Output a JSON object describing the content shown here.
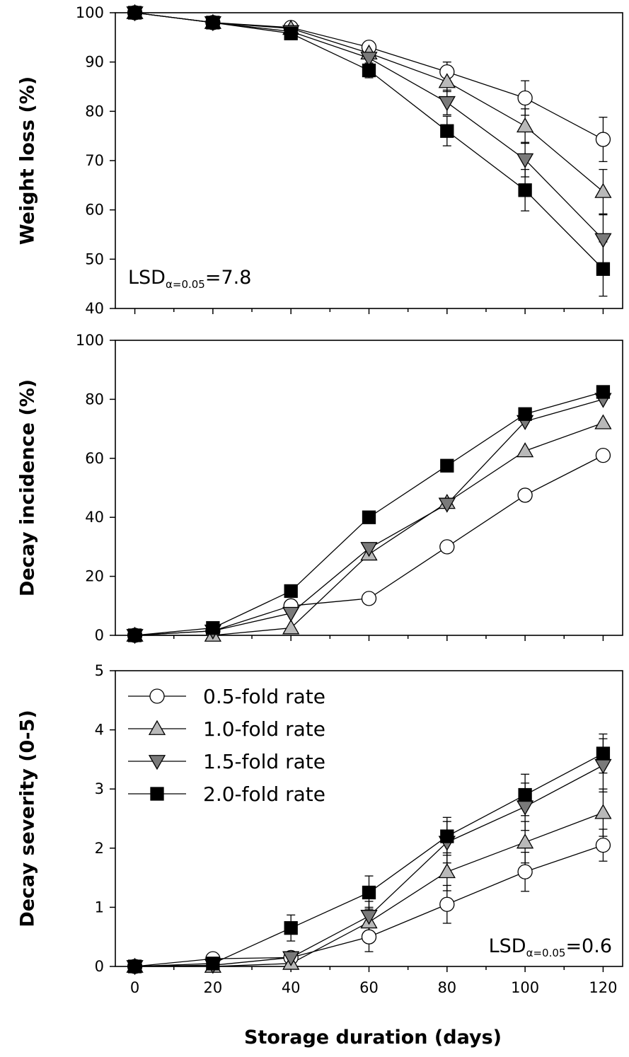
{
  "chart_data": [
    {
      "type": "line",
      "ylabel": "Weight loss (%)",
      "xlabel": "",
      "x": [
        0,
        20,
        40,
        60,
        80,
        100,
        120
      ],
      "xlim": [
        -5,
        125
      ],
      "ylim": [
        40,
        100
      ],
      "yticks": [
        40,
        50,
        60,
        70,
        80,
        90,
        100
      ],
      "annotation": {
        "main": "LSD",
        "sub": "α=0.05",
        "value": "=7.8",
        "placement": "bottom-left"
      },
      "series": [
        {
          "name": "0.5-fold rate",
          "values": [
            100,
            98,
            97,
            93,
            88,
            82.7,
            74.3
          ],
          "errors": [
            0,
            0,
            0,
            1.2,
            2,
            3.5,
            4.5
          ]
        },
        {
          "name": "1.0-fold rate",
          "values": [
            100,
            98,
            96.8,
            91.8,
            86,
            77,
            63.7
          ],
          "errors": [
            0,
            0,
            0,
            1.2,
            2,
            3.5,
            4.5
          ]
        },
        {
          "name": "1.5-fold rate",
          "values": [
            100,
            98,
            96.2,
            90.8,
            81.8,
            70.2,
            54
          ],
          "errors": [
            0,
            0,
            0,
            1.2,
            2.5,
            3.5,
            5
          ]
        },
        {
          "name": "2.0-fold rate",
          "values": [
            100,
            98,
            95.8,
            88.3,
            76,
            64,
            48
          ],
          "errors": [
            0,
            0,
            0,
            1.5,
            3,
            4.2,
            5.5
          ]
        }
      ]
    },
    {
      "type": "line",
      "ylabel": "Decay incidence (%)",
      "xlabel": "",
      "x": [
        0,
        20,
        40,
        60,
        80,
        100,
        120
      ],
      "xlim": [
        -5,
        125
      ],
      "ylim": [
        0,
        100
      ],
      "yticks": [
        0,
        20,
        40,
        60,
        80,
        100
      ],
      "series": [
        {
          "name": "0.5-fold rate",
          "values": [
            0,
            1.5,
            10,
            12.5,
            30,
            47.5,
            61
          ]
        },
        {
          "name": "1.0-fold rate",
          "values": [
            0,
            0,
            2.5,
            27.5,
            45,
            62.5,
            72
          ]
        },
        {
          "name": "1.5-fold rate",
          "values": [
            0,
            1.5,
            7.5,
            29.5,
            44.5,
            72.5,
            80
          ]
        },
        {
          "name": "2.0-fold rate",
          "values": [
            0,
            2.5,
            15,
            40,
            57.5,
            75,
            82.5
          ]
        }
      ]
    },
    {
      "type": "line",
      "ylabel": "Decay severity (0-5)",
      "xlabel": "Storage duration (days)",
      "x": [
        0,
        20,
        40,
        60,
        80,
        100,
        120
      ],
      "xlim": [
        -5,
        125
      ],
      "ylim": [
        0,
        5
      ],
      "yticks": [
        0,
        1,
        2,
        3,
        4,
        5
      ],
      "annotation": {
        "main": "LSD",
        "sub": "α=0.05",
        "value": "=0.6",
        "placement": "bottom-right"
      },
      "legend": {
        "placement": "top-left",
        "entries": [
          "0.5-fold rate",
          "1.0-fold rate",
          "1.5-fold rate",
          "2.0-fold rate"
        ]
      },
      "series": [
        {
          "name": "0.5-fold rate",
          "values": [
            0,
            0.13,
            0.15,
            0.5,
            1.05,
            1.6,
            2.05
          ],
          "errors": [
            0,
            0,
            0,
            0.25,
            0.32,
            0.33,
            0.27
          ]
        },
        {
          "name": "1.0-fold rate",
          "values": [
            0,
            0,
            0.05,
            0.75,
            1.6,
            2.1,
            2.6
          ],
          "errors": [
            0,
            0,
            0,
            0.25,
            0.32,
            0.35,
            0.4
          ]
        },
        {
          "name": "1.5-fold rate",
          "values": [
            0,
            0.02,
            0.15,
            0.85,
            2.1,
            2.7,
            3.4
          ],
          "errors": [
            0,
            0,
            0.1,
            0.25,
            0.35,
            0.4,
            0.45
          ]
        },
        {
          "name": "2.0-fold rate",
          "values": [
            0,
            0.05,
            0.65,
            1.25,
            2.2,
            2.9,
            3.6
          ],
          "errors": [
            0,
            0,
            0.22,
            0.28,
            0.32,
            0.35,
            0.33
          ]
        }
      ]
    }
  ],
  "series_styles": {
    "0.5-fold rate": {
      "marker": "circle",
      "fill": "#ffffff"
    },
    "1.0-fold rate": {
      "marker": "triangle-up",
      "fill": "#b9b9b9"
    },
    "1.5-fold rate": {
      "marker": "triangle-down",
      "fill": "#7a7a7a"
    },
    "2.0-fold rate": {
      "marker": "square",
      "fill": "#000000"
    }
  }
}
